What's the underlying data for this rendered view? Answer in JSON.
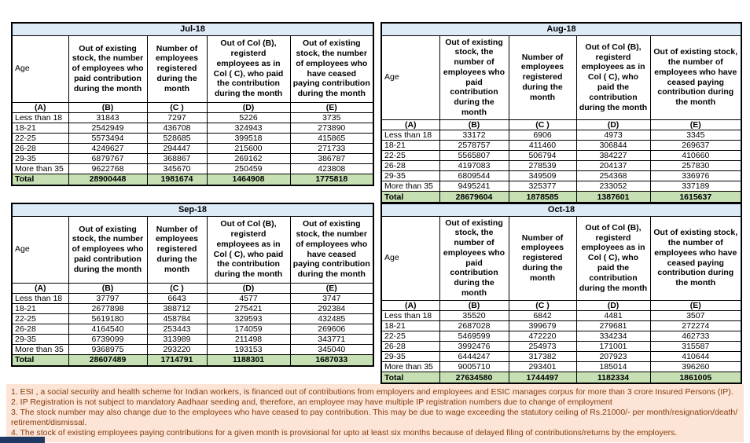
{
  "colors": {
    "month_header_fill": "#DDEBF7",
    "total_row_fill": "#C6E0B4",
    "notes_fill": "#FCE4D6",
    "notes_text": "#843C0C",
    "table_border": "#000000",
    "tab_stub": "#1F3864"
  },
  "headers": {
    "age": "Age",
    "b": "Out of existing stock, the number of employees who paid contribution during the month",
    "c": "Number of employees registered during the month",
    "d": "Out of Col (B), registerd employees as in Col ( C), who paid the contribution during the month",
    "e": "Out of existing stock, the number of employees who have ceased paying contribution during the month"
  },
  "col_letters": [
    "(A)",
    "(B)",
    "(C )",
    "(D)",
    "(E)"
  ],
  "tables": [
    {
      "month": "Jul-18",
      "rows": [
        [
          "Less than 18",
          "31843",
          "7297",
          "5226",
          "3735"
        ],
        [
          "18-21",
          "2542949",
          "436708",
          "324943",
          "273890"
        ],
        [
          "22-25",
          "5573494",
          "528685",
          "399518",
          "415865"
        ],
        [
          "26-28",
          "4249627",
          "294447",
          "215600",
          "271733"
        ],
        [
          "29-35",
          "6879767",
          "368867",
          "269162",
          "386787"
        ],
        [
          "More than 35",
          "9622768",
          "345670",
          "250459",
          "423808"
        ]
      ],
      "total": [
        "Total",
        "28900448",
        "1981674",
        "1464908",
        "1775818"
      ]
    },
    {
      "month": "Aug-18",
      "rows": [
        [
          "Less than 18",
          "33172",
          "6906",
          "4973",
          "3345"
        ],
        [
          "18-21",
          "2578757",
          "411460",
          "306844",
          "269637"
        ],
        [
          "22-25",
          "5565807",
          "506794",
          "384227",
          "410660"
        ],
        [
          "26-28",
          "4197083",
          "278539",
          "204137",
          "257830"
        ],
        [
          "29-35",
          "6809544",
          "349509",
          "254368",
          "336976"
        ],
        [
          "More than 35",
          "9495241",
          "325377",
          "233052",
          "337189"
        ]
      ],
      "total": [
        "Total",
        "28679604",
        "1878585",
        "1387601",
        "1615637"
      ]
    },
    {
      "month": "Sep-18",
      "rows": [
        [
          "Less than 18",
          "37797",
          "6643",
          "4577",
          "3747"
        ],
        [
          "18-21",
          "2677898",
          "388712",
          "275421",
          "292384"
        ],
        [
          "22-25",
          "5619180",
          "458784",
          "329593",
          "432485"
        ],
        [
          "26-28",
          "4164540",
          "253443",
          "174059",
          "269606"
        ],
        [
          "29-35",
          "6739099",
          "313989",
          "211498",
          "343771"
        ],
        [
          "More than 35",
          "9368975",
          "293220",
          "193153",
          "345040"
        ]
      ],
      "total": [
        "Total",
        "28607489",
        "1714791",
        "1188301",
        "1687033"
      ]
    },
    {
      "month": "Oct-18",
      "rows": [
        [
          "Less than 18",
          "35520",
          "6842",
          "4481",
          "3507"
        ],
        [
          "18-21",
          "2687028",
          "399679",
          "279681",
          "272274"
        ],
        [
          "22-25",
          "5469599",
          "472220",
          "334234",
          "462733"
        ],
        [
          "26-28",
          "3992476",
          "254973",
          "171001",
          "315587"
        ],
        [
          "29-35",
          "6444247",
          "317382",
          "207923",
          "410644"
        ],
        [
          "More than 35",
          "9005710",
          "293401",
          "185014",
          "396260"
        ]
      ],
      "total": [
        "Total",
        "27634580",
        "1744497",
        "1182334",
        "1861005"
      ]
    }
  ],
  "notes": [
    "1. ESI , a social security and health scheme for Indian workers, is financed out of contributions from employers and employees and ESIC manages corpus for more than 3 crore Insured Persons (IP).",
    "2. IP Registration is not subject to mandatory Aadhaar seeding and, therefore, an employee may have multiple IP registration numbers due to change of employment",
    "3. The stock number may also change due to the employees who have ceased to pay contribution. This may be due to wage exceeding the statutory ceiling of Rs.21000/- per month/resignation/death/ retirement/dismissal.",
    "4. The stock of existing employees paying contributions for a given month is provisional for upto at least six months because of delayed filing of contributions/returns by the employers."
  ]
}
